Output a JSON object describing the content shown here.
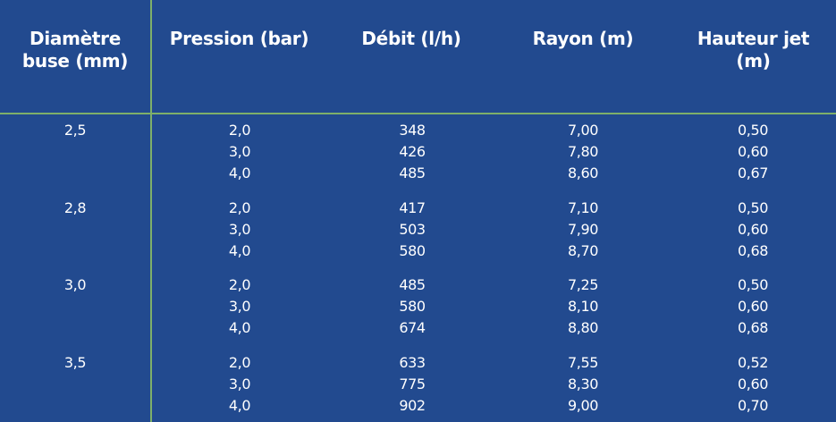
{
  "headers": [
    "Diamètre\nbuse (mm)",
    "Pression (bar)",
    "Débit (l/h)",
    "Rayon (m)",
    "Hauteur jet\n(m)"
  ],
  "groups": [
    {
      "diametre": "2,5",
      "pression": [
        "2,0",
        "3,0",
        "4,0"
      ],
      "debit": [
        "348",
        "426",
        "485"
      ],
      "rayon": [
        "7,00",
        "7,80",
        "8,60"
      ],
      "hauteur": [
        "0,50",
        "0,60",
        "0,67"
      ]
    },
    {
      "diametre": "2,8",
      "pression": [
        "2,0",
        "3,0",
        "4,0"
      ],
      "debit": [
        "417",
        "503",
        "580"
      ],
      "rayon": [
        "7,10",
        "7,90",
        "8,70"
      ],
      "hauteur": [
        "0,50",
        "0,60",
        "0,68"
      ]
    },
    {
      "diametre": "3,0",
      "pression": [
        "2,0",
        "3,0",
        "4,0"
      ],
      "debit": [
        "485",
        "580",
        "674"
      ],
      "rayon": [
        "7,25",
        "8,10",
        "8,80"
      ],
      "hauteur": [
        "0,50",
        "0,60",
        "0,68"
      ]
    },
    {
      "diametre": "3,5",
      "pression": [
        "2,0",
        "3,0",
        "4,0"
      ],
      "debit": [
        "633",
        "775",
        "902"
      ],
      "rayon": [
        "7,55",
        "8,30",
        "9,00"
      ],
      "hauteur": [
        "0,52",
        "0,60",
        "0,70"
      ]
    }
  ]
}
